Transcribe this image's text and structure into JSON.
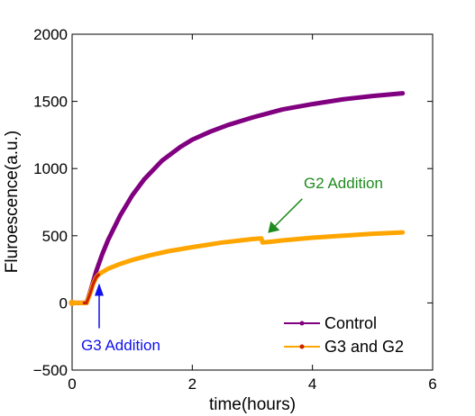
{
  "chart_data": {
    "type": "line",
    "xlabel": "time(hours)",
    "ylabel": "Fluroescence(a.u.)",
    "xlim": [
      0,
      6
    ],
    "ylim": [
      -500,
      2000
    ],
    "xticks": [
      0,
      2,
      4,
      6
    ],
    "yticks": [
      -500,
      0,
      500,
      1000,
      1500,
      2000
    ],
    "grid": false,
    "legend_position": "bottom-right",
    "series": [
      {
        "name": "Control",
        "color": "#800080",
        "marker_color": "#800080",
        "x": [
          0,
          0.2,
          0.24,
          0.3,
          0.4,
          0.5,
          0.6,
          0.8,
          1.0,
          1.2,
          1.5,
          1.8,
          2.0,
          2.3,
          2.6,
          3.0,
          3.5,
          4.0,
          4.5,
          5.0,
          5.5
        ],
        "y": [
          0,
          0,
          0,
          80,
          235,
          360,
          470,
          650,
          800,
          920,
          1060,
          1160,
          1215,
          1275,
          1325,
          1380,
          1440,
          1480,
          1515,
          1540,
          1560
        ]
      },
      {
        "name": "G3 and G2",
        "color": "#FFA500",
        "marker_color": "#CC2200",
        "x": [
          0,
          0.2,
          0.24,
          0.3,
          0.35,
          0.4,
          0.45,
          0.6,
          0.8,
          1.0,
          1.3,
          1.6,
          2.0,
          2.5,
          3.0,
          3.15,
          3.17,
          3.3,
          3.5,
          4.0,
          4.5,
          5.0,
          5.5
        ],
        "y": [
          0,
          0,
          0,
          70,
          140,
          190,
          215,
          255,
          290,
          320,
          355,
          385,
          415,
          450,
          475,
          480,
          450,
          455,
          465,
          485,
          500,
          515,
          525
        ]
      }
    ],
    "annotations": [
      {
        "text": "G3 Addition",
        "color": "#1010EE",
        "target_x": 0.45,
        "target_y": 200
      },
      {
        "text": "G2 Addition",
        "color": "#1F8B1F",
        "target_x": 3.2,
        "target_y": 480
      }
    ]
  }
}
